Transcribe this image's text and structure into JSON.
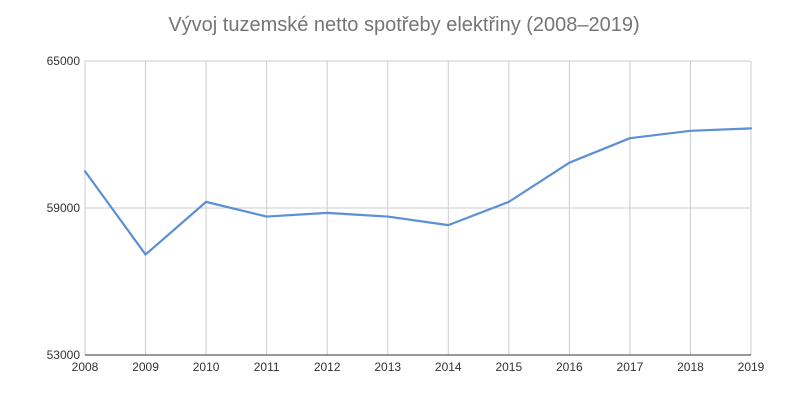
{
  "chart_data": {
    "type": "line",
    "title": "Vývoj tuzemské netto spotřeby elektřiny (2008–2019)",
    "xlabel": "",
    "ylabel": "",
    "x": [
      "2008",
      "2009",
      "2010",
      "2011",
      "2012",
      "2013",
      "2014",
      "2015",
      "2016",
      "2017",
      "2018",
      "2019"
    ],
    "series": [
      {
        "values": [
          60500,
          57100,
          59250,
          58650,
          58800,
          58650,
          58300,
          59250,
          60850,
          61850,
          62150,
          62250
        ],
        "color": "#5b8fd6"
      }
    ],
    "ylim": [
      53000,
      65000
    ],
    "yticks": [
      53000,
      59000,
      65000
    ],
    "grid": true,
    "legend": "none"
  }
}
